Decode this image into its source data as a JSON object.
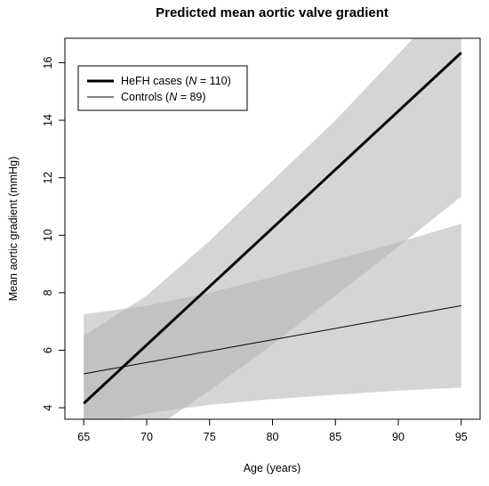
{
  "chart_data": {
    "type": "line",
    "title": "Predicted mean aortic valve gradient",
    "xlabel": "Age (years)",
    "ylabel": "Mean aortic gradient (mmHg)",
    "xlim": [
      63.5,
      96.5
    ],
    "ylim": [
      3.6,
      16.85
    ],
    "xticks": [
      65,
      70,
      75,
      80,
      85,
      90,
      95
    ],
    "yticks": [
      4,
      6,
      8,
      10,
      12,
      14,
      16
    ],
    "grid": false,
    "legend_position": "top-left",
    "band_color": "#b3b3b3",
    "series": [
      {
        "name_prefix": "HeFH cases (",
        "name_var": "N",
        "name_suffix": " = 110)",
        "line_color": "#000000",
        "line_weight": "thick",
        "x": [
          65,
          95
        ],
        "y": [
          4.15,
          16.35
        ],
        "band": {
          "x": [
            65,
            70,
            75,
            80,
            85,
            90,
            95
          ],
          "lower": [
            1.8,
            3.1,
            4.6,
            6.2,
            7.9,
            9.6,
            11.35
          ],
          "upper": [
            6.5,
            7.9,
            9.8,
            11.9,
            14.0,
            16.3,
            18.6
          ]
        }
      },
      {
        "name_prefix": "Controls (",
        "name_var": "N",
        "name_suffix": " = 89)",
        "line_color": "#000000",
        "line_weight": "thin",
        "x": [
          65,
          95
        ],
        "y": [
          5.18,
          7.55
        ],
        "band": {
          "x": [
            65,
            70,
            75,
            80,
            85,
            90,
            95
          ],
          "lower": [
            3.3,
            3.8,
            4.1,
            4.3,
            4.45,
            4.6,
            4.7
          ],
          "upper": [
            7.25,
            7.55,
            8.0,
            8.55,
            9.15,
            9.75,
            10.4
          ]
        }
      }
    ]
  }
}
